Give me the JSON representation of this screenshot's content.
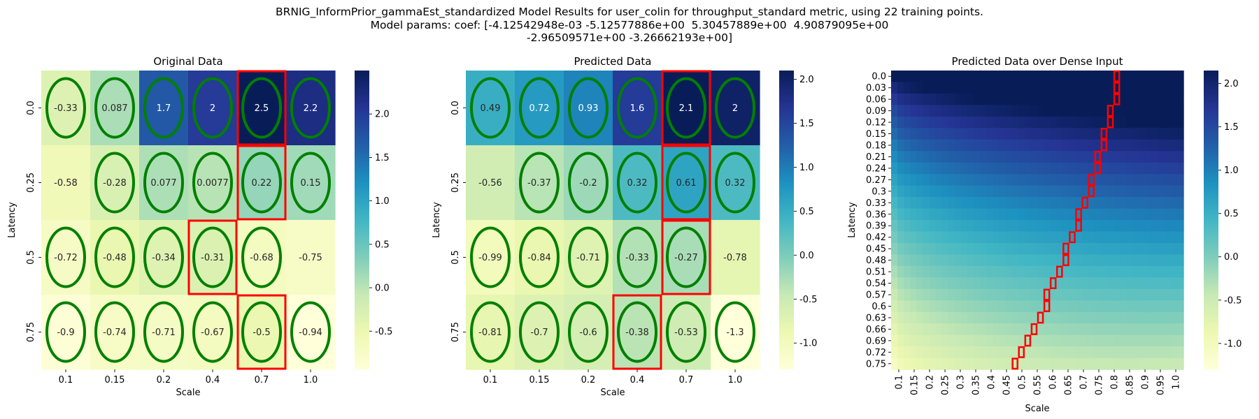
{
  "suptitle": {
    "line1": "BRNIG_InformPrior_gammaEst_standardized Model Results for user_colin for throughput_standard metric, using 22 training points.",
    "line2": "Model params: coef: [-4.12542948e-03 -5.12577886e+00  5.30457889e+00  4.90879095e+00",
    "line3": "-2.96509571e+00 -3.26662193e+00]"
  },
  "colors": {
    "colormap": "YlGnBu",
    "circle": "#008000",
    "box": "#ff0000",
    "text_light": "#ffffff",
    "text_dark": "#262626"
  },
  "chart_data": [
    {
      "type": "heatmap",
      "title": "Original Data",
      "xlabel": "Scale",
      "ylabel": "Latency",
      "x_ticks": [
        "0.1",
        "0.15",
        "0.2",
        "0.4",
        "0.7",
        "1.0"
      ],
      "y_ticks": [
        "0.0",
        "0.25",
        "0.5",
        "0.75"
      ],
      "values": [
        [
          -0.33,
          0.087,
          1.7,
          2,
          2.5,
          2.2
        ],
        [
          -0.58,
          -0.28,
          0.077,
          0.0077,
          0.22,
          0.15
        ],
        [
          -0.72,
          -0.48,
          -0.34,
          -0.31,
          -0.68,
          -0.75
        ],
        [
          -0.9,
          -0.74,
          -0.71,
          -0.67,
          -0.5,
          -0.94
        ]
      ],
      "value_labels": [
        [
          "-0.33",
          "0.087",
          "1.7",
          "2",
          "2.5",
          "2.2"
        ],
        [
          "-0.58",
          "-0.28",
          "0.077",
          "0.0077",
          "0.22",
          "0.15"
        ],
        [
          "-0.72",
          "-0.48",
          "-0.34",
          "-0.31",
          "-0.68",
          "-0.75"
        ],
        [
          "-0.9",
          "-0.74",
          "-0.71",
          "-0.67",
          "-0.5",
          "-0.94"
        ]
      ],
      "circled": [
        [
          true,
          true,
          true,
          true,
          true,
          true
        ],
        [
          false,
          true,
          true,
          true,
          true,
          true
        ],
        [
          true,
          true,
          true,
          true,
          true,
          false
        ],
        [
          true,
          true,
          true,
          true,
          true,
          true
        ]
      ],
      "boxed": [
        [
          0,
          4
        ],
        [
          1,
          4
        ],
        [
          2,
          3
        ],
        [
          3,
          4
        ]
      ],
      "vmin": -0.94,
      "vmax": 2.5,
      "colorbar_ticks": [
        "-0.5",
        "0.0",
        "0.5",
        "1.0",
        "1.5",
        "2.0"
      ]
    },
    {
      "type": "heatmap",
      "title": "Predicted Data",
      "xlabel": "Scale",
      "ylabel": "Latency",
      "x_ticks": [
        "0.1",
        "0.15",
        "0.2",
        "0.4",
        "0.7",
        "1.0"
      ],
      "y_ticks": [
        "0.0",
        "0.25",
        "0.5",
        "0.75"
      ],
      "values": [
        [
          0.49,
          0.72,
          0.93,
          1.6,
          2.1,
          2
        ],
        [
          -0.56,
          -0.37,
          -0.2,
          0.32,
          0.61,
          0.32
        ],
        [
          -0.99,
          -0.84,
          -0.71,
          -0.33,
          -0.27,
          -0.78
        ],
        [
          -0.81,
          -0.7,
          -0.6,
          -0.38,
          -0.53,
          -1.3
        ]
      ],
      "value_labels": [
        [
          "0.49",
          "0.72",
          "0.93",
          "1.6",
          "2.1",
          "2"
        ],
        [
          "-0.56",
          "-0.37",
          "-0.2",
          "0.32",
          "0.61",
          "0.32"
        ],
        [
          "-0.99",
          "-0.84",
          "-0.71",
          "-0.33",
          "-0.27",
          "-0.78"
        ],
        [
          "-0.81",
          "-0.7",
          "-0.6",
          "-0.38",
          "-0.53",
          "-1.3"
        ]
      ],
      "circled": [
        [
          true,
          true,
          true,
          true,
          true,
          true
        ],
        [
          false,
          true,
          true,
          true,
          true,
          true
        ],
        [
          true,
          true,
          true,
          true,
          true,
          false
        ],
        [
          true,
          true,
          true,
          true,
          true,
          true
        ]
      ],
      "boxed": [
        [
          0,
          4
        ],
        [
          1,
          4
        ],
        [
          2,
          4
        ],
        [
          3,
          3
        ]
      ],
      "vmin": -1.3,
      "vmax": 2.1,
      "colorbar_ticks": [
        "-1.0",
        "-0.5",
        "0.0",
        "0.5",
        "1.0",
        "1.5",
        "2.0"
      ]
    },
    {
      "type": "heatmap",
      "title": "Predicted Data over Dense Input",
      "xlabel": "Scale",
      "ylabel": "Latency",
      "x_ticks": [
        "0.1",
        "0.15",
        "0.2",
        "0.25",
        "0.3",
        "0.35",
        "0.4",
        "0.45",
        "0.5",
        "0.55",
        "0.6",
        "0.65",
        "0.7",
        "0.75",
        "0.8",
        "0.85",
        "0.9",
        "0.95",
        "1.0"
      ],
      "y_ticks": [
        "0.0",
        "0.03",
        "0.06",
        "0.09",
        "0.12",
        "0.15",
        "0.18",
        "0.21",
        "0.24",
        "0.27",
        "0.3",
        "0.33",
        "0.36",
        "0.39",
        "0.42",
        "0.45",
        "0.48",
        "0.51",
        "0.54",
        "0.57",
        "0.6",
        "0.63",
        "0.66",
        "0.69",
        "0.72",
        "0.75"
      ],
      "x_range": [
        0.1,
        1.0
      ],
      "y_range": [
        0.0,
        0.75
      ],
      "vmin": -1.3,
      "vmax": 2.15,
      "optimal_path": [
        [
          0.0,
          0.8
        ],
        [
          0.03,
          0.8
        ],
        [
          0.06,
          0.8
        ],
        [
          0.09,
          0.78
        ],
        [
          0.12,
          0.78
        ],
        [
          0.15,
          0.76
        ],
        [
          0.18,
          0.76
        ],
        [
          0.21,
          0.74
        ],
        [
          0.24,
          0.74
        ],
        [
          0.27,
          0.72
        ],
        [
          0.3,
          0.72
        ],
        [
          0.33,
          0.7
        ],
        [
          0.36,
          0.68
        ],
        [
          0.39,
          0.68
        ],
        [
          0.42,
          0.66
        ],
        [
          0.45,
          0.64
        ],
        [
          0.48,
          0.64
        ],
        [
          0.51,
          0.62
        ],
        [
          0.54,
          0.6
        ],
        [
          0.57,
          0.58
        ],
        [
          0.6,
          0.58
        ],
        [
          0.63,
          0.56
        ],
        [
          0.66,
          0.54
        ],
        [
          0.69,
          0.52
        ],
        [
          0.72,
          0.5
        ],
        [
          0.75,
          0.48
        ]
      ],
      "colorbar_ticks": [
        "-1.0",
        "-0.5",
        "0.0",
        "0.5",
        "1.0",
        "1.5",
        "2.0"
      ]
    }
  ]
}
